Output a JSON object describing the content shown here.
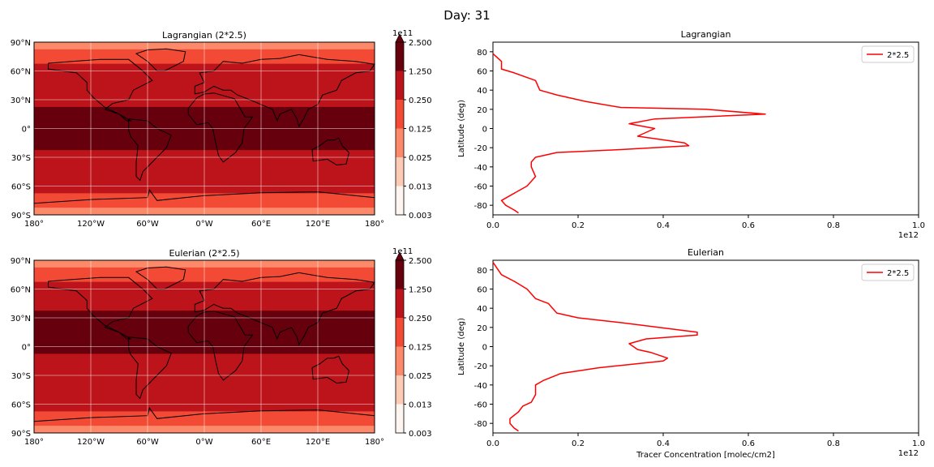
{
  "figure": {
    "suptitle": "Day: 31"
  },
  "colormap": [
    "#fff5f0",
    "#fdcab5",
    "#fc8a6a",
    "#f24a35",
    "#bc141a",
    "#67000d"
  ],
  "chart_data": [
    {
      "type": "heatmap",
      "title": "Lagrangian (2*2.5)",
      "xticks": [
        "180°",
        "120°W",
        "60°W",
        "0°W",
        "60°E",
        "120°E",
        "180°"
      ],
      "yticks": [
        "90°N",
        "60°N",
        "30°N",
        "0°",
        "30°S",
        "60°S",
        "90°S"
      ],
      "colorbar": {
        "offset_label": "1e11",
        "tick_labels": [
          "2.500",
          "1.250",
          "0.250",
          "0.125",
          "0.025",
          "0.013",
          "0.003"
        ],
        "extend": "max"
      },
      "bands": [
        {
          "lat": 90,
          "level": 2
        },
        {
          "lat": 75,
          "level": 3
        },
        {
          "lat": 60,
          "level": 4
        },
        {
          "lat": 45,
          "level": 4
        },
        {
          "lat": 30,
          "level": 4
        },
        {
          "lat": 15,
          "level": 5
        },
        {
          "lat": 0,
          "level": 5
        },
        {
          "lat": -15,
          "level": 5
        },
        {
          "lat": -30,
          "level": 4
        },
        {
          "lat": -45,
          "level": 4
        },
        {
          "lat": -60,
          "level": 4
        },
        {
          "lat": -75,
          "level": 3
        },
        {
          "lat": -90,
          "level": 2
        }
      ]
    },
    {
      "type": "line",
      "title": "Lagrangian",
      "xlabel": "",
      "ylabel": "Latitude (deg)",
      "xlim": [
        0,
        1.0
      ],
      "ylim": [
        -90,
        90
      ],
      "x_offset_label": "1e12",
      "xticks": [
        "0.0",
        "0.2",
        "0.4",
        "0.6",
        "0.8",
        "1.0"
      ],
      "yticks": [
        "80",
        "60",
        "40",
        "20",
        "0",
        "-20",
        "-40",
        "-60",
        "-80"
      ],
      "legend": {
        "placement": "upper right"
      },
      "series": [
        {
          "name": "2*2.5",
          "color": "#ff0000",
          "x": [
            0.0,
            0.02,
            0.02,
            0.05,
            0.1,
            0.11,
            0.15,
            0.22,
            0.3,
            0.5,
            0.64,
            0.38,
            0.32,
            0.38,
            0.34,
            0.45,
            0.46,
            0.3,
            0.15,
            0.1,
            0.09,
            0.09,
            0.1,
            0.09,
            0.08,
            0.06,
            0.04,
            0.02,
            0.03,
            0.05,
            0.06
          ],
          "y": [
            78,
            70,
            62,
            58,
            50,
            40,
            35,
            28,
            22,
            20,
            15,
            10,
            5,
            0,
            -8,
            -15,
            -18,
            -22,
            -25,
            -30,
            -35,
            -40,
            -50,
            -55,
            -60,
            -65,
            -70,
            -75,
            -80,
            -85,
            -88
          ]
        }
      ]
    },
    {
      "type": "heatmap",
      "title": "Eulerian (2*2.5)",
      "xticks": [
        "180°",
        "120°W",
        "60°W",
        "0°W",
        "60°E",
        "120°E",
        "180°"
      ],
      "yticks": [
        "90°N",
        "60°N",
        "30°N",
        "0°",
        "30°S",
        "60°S",
        "90°S"
      ],
      "colorbar": {
        "offset_label": "1e11",
        "tick_labels": [
          "2.500",
          "1.250",
          "0.250",
          "0.125",
          "0.025",
          "0.013",
          "0.003"
        ],
        "extend": "max"
      },
      "bands": [
        {
          "lat": 90,
          "level": 2
        },
        {
          "lat": 75,
          "level": 3
        },
        {
          "lat": 60,
          "level": 4
        },
        {
          "lat": 45,
          "level": 4
        },
        {
          "lat": 30,
          "level": 5
        },
        {
          "lat": 15,
          "level": 5
        },
        {
          "lat": 0,
          "level": 5
        },
        {
          "lat": -15,
          "level": 4
        },
        {
          "lat": -30,
          "level": 4
        },
        {
          "lat": -45,
          "level": 4
        },
        {
          "lat": -60,
          "level": 4
        },
        {
          "lat": -75,
          "level": 3
        },
        {
          "lat": -90,
          "level": 2
        }
      ]
    },
    {
      "type": "line",
      "title": "Eulerian",
      "xlabel": "Tracer Concentration [molec/cm2]",
      "ylabel": "Latitude (deg)",
      "xlim": [
        0,
        1.0
      ],
      "ylim": [
        -90,
        90
      ],
      "x_offset_label": "1e12",
      "xticks": [
        "0.0",
        "0.2",
        "0.4",
        "0.6",
        "0.8",
        "1.0"
      ],
      "yticks": [
        "80",
        "60",
        "40",
        "20",
        "0",
        "-20",
        "-40",
        "-60",
        "-80"
      ],
      "legend": {
        "placement": "upper right"
      },
      "series": [
        {
          "name": "2*2.5",
          "color": "#ff0000",
          "x": [
            0.0,
            0.02,
            0.05,
            0.08,
            0.1,
            0.13,
            0.14,
            0.15,
            0.2,
            0.3,
            0.48,
            0.48,
            0.36,
            0.32,
            0.34,
            0.37,
            0.41,
            0.4,
            0.25,
            0.16,
            0.12,
            0.1,
            0.1,
            0.09,
            0.07,
            0.06,
            0.04,
            0.04,
            0.05,
            0.06
          ],
          "y": [
            88,
            75,
            68,
            60,
            50,
            45,
            40,
            35,
            30,
            25,
            15,
            12,
            8,
            3,
            -3,
            -6,
            -12,
            -15,
            -22,
            -28,
            -35,
            -40,
            -50,
            -58,
            -62,
            -68,
            -75,
            -80,
            -85,
            -88
          ]
        }
      ]
    }
  ]
}
